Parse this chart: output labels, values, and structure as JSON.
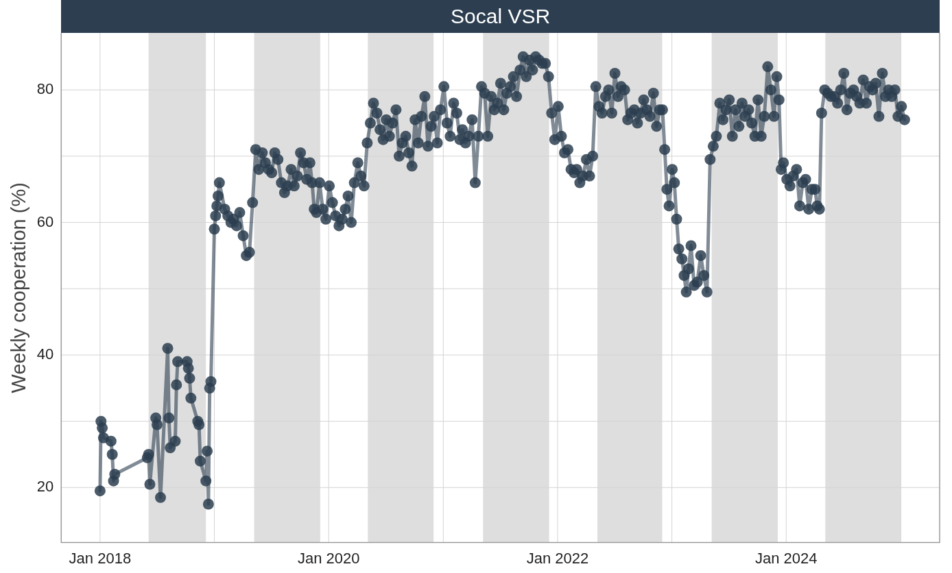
{
  "chart_data": {
    "type": "line",
    "title": "Socal VSR",
    "ylabel": "Weekly cooperation (%)",
    "x": [
      "2018-01-01",
      "2018-01-04",
      "2018-01-08",
      "2018-01-12",
      "2018-02-05",
      "2018-02-09",
      "2018-02-13",
      "2018-02-17",
      "2018-06-01",
      "2018-06-05",
      "2018-06-09",
      "2018-06-28",
      "2018-07-02",
      "2018-07-13",
      "2018-08-05",
      "2018-08-09",
      "2018-08-13",
      "2018-08-29",
      "2018-09-02",
      "2018-09-06",
      "2018-10-06",
      "2018-10-10",
      "2018-10-14",
      "2018-10-18",
      "2018-11-09",
      "2018-11-13",
      "2018-11-17",
      "2018-12-05",
      "2018-12-09",
      "2018-12-13",
      "2018-12-17",
      "2018-12-21",
      "2019-01-01",
      "2019-01-05",
      "2019-01-09",
      "2019-01-13",
      "2019-01-17",
      "2019-02-03",
      "2019-02-13",
      "2019-02-23",
      "2019-03-03",
      "2019-03-13",
      "2019-03-23",
      "2019-04-03",
      "2019-04-13",
      "2019-04-23",
      "2019-05-03",
      "2019-05-13",
      "2019-05-23",
      "2019-06-03",
      "2019-06-13",
      "2019-06-23",
      "2019-07-03",
      "2019-07-13",
      "2019-07-23",
      "2019-08-03",
      "2019-08-13",
      "2019-08-23",
      "2019-09-03",
      "2019-09-13",
      "2019-09-23",
      "2019-10-03",
      "2019-10-13",
      "2019-10-23",
      "2019-11-02",
      "2019-11-09",
      "2019-11-16",
      "2019-11-23",
      "2019-12-03",
      "2019-12-13",
      "2019-12-23",
      "2020-01-03",
      "2020-01-13",
      "2020-01-23",
      "2020-02-03",
      "2020-02-13",
      "2020-02-23",
      "2020-03-03",
      "2020-03-13",
      "2020-03-23",
      "2020-04-03",
      "2020-04-13",
      "2020-04-23",
      "2020-05-03",
      "2020-05-13",
      "2020-05-23",
      "2020-06-03",
      "2020-06-13",
      "2020-06-23",
      "2020-07-03",
      "2020-07-13",
      "2020-07-23",
      "2020-08-03",
      "2020-08-13",
      "2020-08-23",
      "2020-09-03",
      "2020-09-13",
      "2020-09-23",
      "2020-10-03",
      "2020-10-13",
      "2020-10-23",
      "2020-11-03",
      "2020-11-13",
      "2020-11-23",
      "2020-12-03",
      "2020-12-13",
      "2020-12-23",
      "2021-01-03",
      "2021-01-13",
      "2021-01-23",
      "2021-02-03",
      "2021-02-13",
      "2021-02-23",
      "2021-03-03",
      "2021-03-13",
      "2021-03-23",
      "2021-04-03",
      "2021-04-13",
      "2021-04-23",
      "2021-05-03",
      "2021-05-13",
      "2021-05-23",
      "2021-06-03",
      "2021-06-13",
      "2021-06-23",
      "2021-07-03",
      "2021-07-13",
      "2021-07-23",
      "2021-08-03",
      "2021-08-13",
      "2021-08-23",
      "2021-09-03",
      "2021-09-13",
      "2021-09-23",
      "2021-10-03",
      "2021-10-13",
      "2021-10-23",
      "2021-11-03",
      "2021-11-13",
      "2021-11-23",
      "2021-12-03",
      "2021-12-13",
      "2021-12-23",
      "2022-01-03",
      "2022-01-13",
      "2022-01-23",
      "2022-02-03",
      "2022-02-13",
      "2022-02-23",
      "2022-03-03",
      "2022-03-13",
      "2022-03-23",
      "2022-04-03",
      "2022-04-13",
      "2022-04-23",
      "2022-05-03",
      "2022-05-13",
      "2022-05-23",
      "2022-06-03",
      "2022-06-13",
      "2022-06-23",
      "2022-07-03",
      "2022-07-13",
      "2022-07-23",
      "2022-08-03",
      "2022-08-13",
      "2022-08-23",
      "2022-09-03",
      "2022-09-13",
      "2022-09-23",
      "2022-10-03",
      "2022-10-13",
      "2022-10-23",
      "2022-11-03",
      "2022-11-13",
      "2022-11-23",
      "2022-12-02",
      "2022-12-09",
      "2022-12-16",
      "2022-12-23",
      "2023-01-02",
      "2023-01-09",
      "2023-01-16",
      "2023-01-23",
      "2023-02-02",
      "2023-02-09",
      "2023-02-16",
      "2023-02-23",
      "2023-03-03",
      "2023-03-13",
      "2023-03-23",
      "2023-04-03",
      "2023-04-13",
      "2023-04-23",
      "2023-05-03",
      "2023-05-13",
      "2023-05-23",
      "2023-06-03",
      "2023-06-13",
      "2023-06-23",
      "2023-07-03",
      "2023-07-13",
      "2023-07-23",
      "2023-08-03",
      "2023-08-13",
      "2023-08-23",
      "2023-09-03",
      "2023-09-13",
      "2023-09-23",
      "2023-10-03",
      "2023-10-13",
      "2023-10-23",
      "2023-11-03",
      "2023-11-13",
      "2023-11-23",
      "2023-12-02",
      "2023-12-09",
      "2023-12-16",
      "2023-12-23",
      "2024-01-03",
      "2024-01-13",
      "2024-01-23",
      "2024-02-03",
      "2024-02-13",
      "2024-02-23",
      "2024-03-03",
      "2024-03-13",
      "2024-03-23",
      "2024-04-02",
      "2024-04-09",
      "2024-04-16",
      "2024-04-23",
      "2024-05-03",
      "2024-05-13",
      "2024-05-23",
      "2024-06-03",
      "2024-06-13",
      "2024-06-23",
      "2024-07-03",
      "2024-07-13",
      "2024-07-23",
      "2024-08-03",
      "2024-08-13",
      "2024-08-23",
      "2024-09-03",
      "2024-09-13",
      "2024-09-23",
      "2024-10-03",
      "2024-10-13",
      "2024-10-23",
      "2024-11-03",
      "2024-11-13",
      "2024-11-23",
      "2024-12-03",
      "2024-12-13",
      "2024-12-23",
      "2025-01-03",
      "2025-01-13"
    ],
    "series": [
      {
        "color": "#2c3e50",
        "values": [
          19.5,
          30,
          29,
          27.5,
          27,
          25,
          21,
          22,
          24.5,
          25,
          20.5,
          30.5,
          29.5,
          18.5,
          41,
          30.5,
          26,
          27,
          35.5,
          39,
          39,
          38,
          36.5,
          33.5,
          30,
          29.5,
          24,
          21,
          25.5,
          17.5,
          35,
          36,
          59,
          61,
          62.5,
          64,
          66,
          62,
          61,
          60,
          60.5,
          59.5,
          61.5,
          58,
          55,
          55.5,
          63,
          71,
          68,
          70.5,
          69,
          68,
          67.5,
          70.5,
          69.5,
          66,
          64.5,
          65.5,
          68,
          65.5,
          67,
          70.5,
          69,
          66.5,
          69,
          66,
          62,
          61.5,
          66,
          62,
          60.5,
          65.5,
          63,
          61,
          59.5,
          60.5,
          62,
          64,
          60,
          66,
          69,
          67,
          65.5,
          72,
          75,
          78,
          76.5,
          74,
          72.5,
          75.5,
          73,
          75,
          77,
          70,
          72,
          73,
          70.5,
          68.5,
          75.5,
          72,
          76,
          79,
          71.5,
          74.5,
          76,
          72,
          77,
          80.5,
          75,
          73,
          78,
          76.5,
          72.5,
          74,
          72,
          73,
          75.5,
          66,
          73,
          80.5,
          79.5,
          73,
          79,
          77,
          78,
          81,
          77,
          79.5,
          80.5,
          82,
          79,
          83,
          85,
          82,
          84.5,
          83,
          85,
          84.5,
          84,
          84,
          82,
          76.5,
          72.5,
          77.5,
          73,
          70.5,
          71,
          68,
          67.5,
          68,
          66,
          67,
          69.5,
          67,
          70,
          80.5,
          77.5,
          76.5,
          79,
          80,
          76.5,
          82.5,
          79,
          80.5,
          80,
          75.5,
          76.5,
          77,
          75,
          76.5,
          78.5,
          77,
          76,
          79.5,
          74.5,
          77,
          77,
          71,
          65,
          62.5,
          68,
          66,
          60.5,
          56,
          54.5,
          52,
          49.5,
          53,
          56.5,
          50.5,
          51,
          55,
          52,
          49.5,
          69.5,
          71.5,
          73,
          78,
          75.5,
          77,
          78.5,
          73,
          77,
          74.5,
          78,
          76,
          77,
          75,
          73,
          78.5,
          73,
          76,
          83.5,
          80,
          76,
          82,
          78.5,
          68,
          69,
          66.5,
          65.5,
          67,
          68,
          62.5,
          66,
          66.5,
          62,
          65,
          65,
          62.5,
          62,
          76.5,
          80,
          79.5,
          79,
          79,
          78,
          80,
          82.5,
          77,
          79.5,
          80,
          79,
          78,
          81.5,
          78,
          80.5,
          80,
          81,
          76,
          82.5,
          79,
          80,
          79,
          80,
          76,
          77.5,
          75.5
        ]
      }
    ],
    "xlim": [
      "2017-08-30",
      "2025-05-05"
    ],
    "xticks": [
      {
        "value": "2018-01-01",
        "label": "Jan 2018"
      },
      {
        "value": "2019-01-01",
        "label": null
      },
      {
        "value": "2020-01-01",
        "label": "Jan 2020"
      },
      {
        "value": "2021-01-01",
        "label": null
      },
      {
        "value": "2022-01-01",
        "label": "Jan 2022"
      },
      {
        "value": "2023-01-01",
        "label": null
      },
      {
        "value": "2024-01-01",
        "label": "Jan 2024"
      },
      {
        "value": "2025-01-01",
        "label": null
      }
    ],
    "ylim": [
      11.7,
      88.6
    ],
    "yticks": [
      20,
      {
        "value": 30,
        "label": null
      },
      40,
      {
        "value": 50,
        "label": null
      },
      60,
      {
        "value": 70,
        "label": null
      },
      80
    ],
    "bands": [
      {
        "axis": "x",
        "from": "2018-06-05",
        "to": "2018-12-05",
        "color": "#dedede"
      },
      {
        "axis": "x",
        "from": "2019-05-08",
        "to": "2019-12-05",
        "color": "#dedede"
      },
      {
        "axis": "x",
        "from": "2020-05-05",
        "to": "2020-12-01",
        "color": "#dedede"
      },
      {
        "axis": "x",
        "from": "2021-05-08",
        "to": "2021-12-05",
        "color": "#dedede"
      },
      {
        "axis": "x",
        "from": "2022-05-08",
        "to": "2022-12-01",
        "color": "#dedede"
      },
      {
        "axis": "x",
        "from": "2023-05-08",
        "to": "2023-12-05",
        "color": "#dedede"
      },
      {
        "axis": "x",
        "from": "2024-05-05",
        "to": "2024-12-31",
        "color": "#dedede"
      }
    ],
    "grid": true,
    "legend": false,
    "marker": "circle",
    "line_style": "solid"
  }
}
